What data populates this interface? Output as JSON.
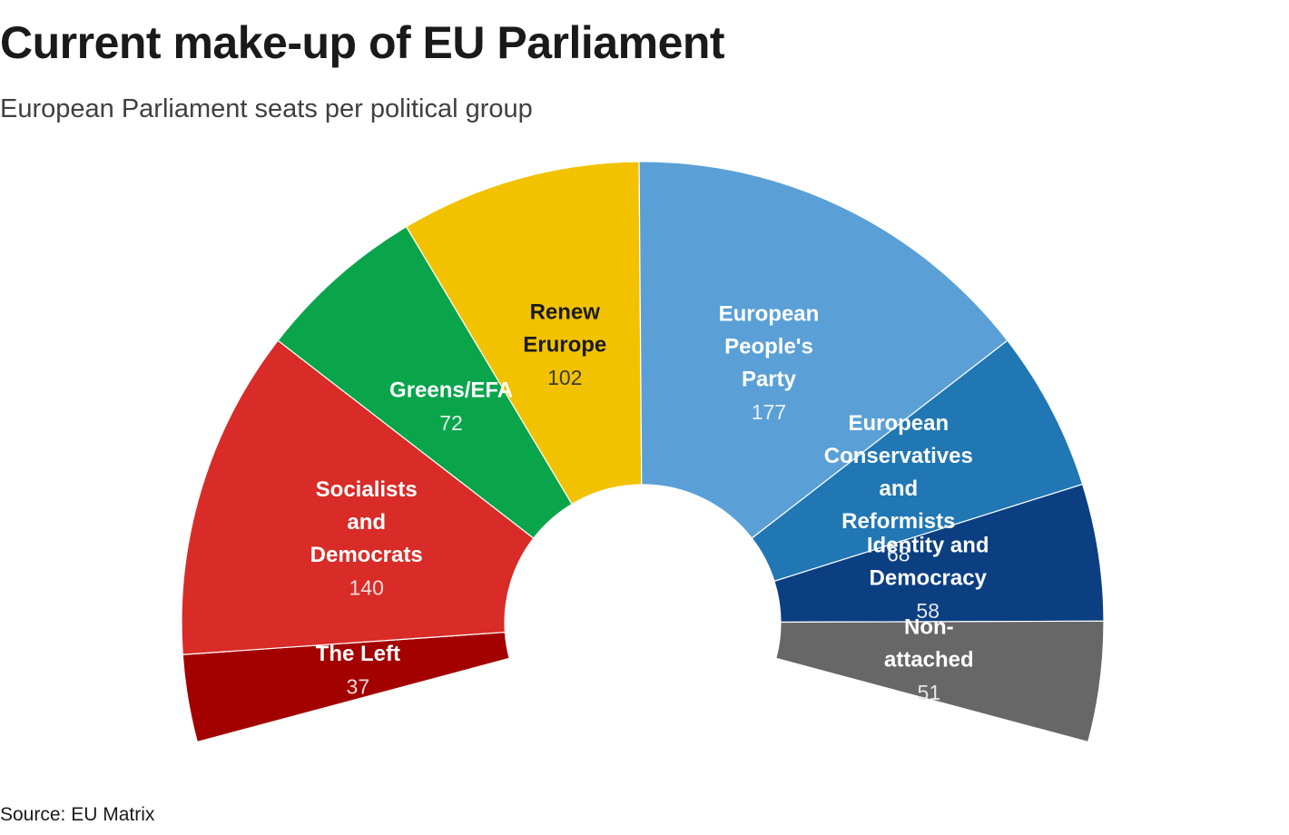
{
  "title": "Current make-up of EU Parliament",
  "subtitle": "European Parliament seats per political group",
  "source": "Source: EU Matrix",
  "chart_data": {
    "type": "pie",
    "subtype": "parliament-hemicycle",
    "categories": [
      "The Left",
      "Socialists and Democrats",
      "Greens/EFA",
      "Renew Erurope",
      "European People's Party",
      "European Conservatives and Reformists",
      "Identity and Democracy",
      "Non-attached"
    ],
    "values": [
      37,
      140,
      72,
      102,
      177,
      68,
      58,
      51
    ],
    "value_labels": [
      "37",
      "140",
      "72",
      "102",
      "177",
      "68",
      "58",
      "51"
    ],
    "label_lines": [
      [
        "The Left"
      ],
      [
        "Socialists",
        "and",
        "Democrats"
      ],
      [
        "Greens/EFA"
      ],
      [
        "Renew",
        "Erurope"
      ],
      [
        "European",
        "People's",
        "Party"
      ],
      [
        "European",
        "Conservatives",
        "and",
        "Reformists"
      ],
      [
        "Identity and",
        "Democracy"
      ],
      [
        "Non-",
        "attached"
      ]
    ],
    "colors": [
      "#a30000",
      "#d92b27",
      "#0aa54b",
      "#f2c200",
      "#5aa0d6",
      "#2077b3",
      "#0b3f82",
      "#676767"
    ],
    "label_colors": [
      "#ffffff",
      "#ffffff",
      "#ffffff",
      "#1a1a1a",
      "#ffffff",
      "#ffffff",
      "#ffffff",
      "#ffffff"
    ],
    "value_colors": [
      "#f3dada",
      "#f7dddc",
      "#e2f2e8",
      "#3a3a3a",
      "#e9f1f9",
      "#e6eff7",
      "#e2e8f0",
      "#e6e6e6"
    ],
    "legend": "none"
  }
}
